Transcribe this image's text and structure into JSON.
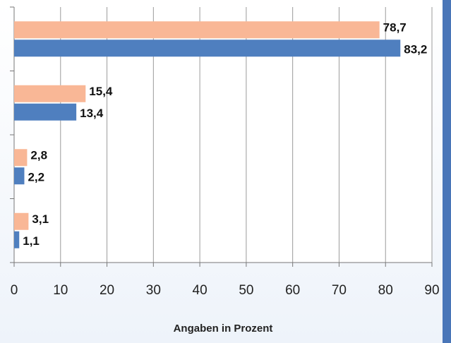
{
  "chart_data": {
    "type": "bar",
    "orientation": "horizontal",
    "categories": [
      null,
      null,
      null,
      null
    ],
    "series": [
      {
        "color": "#f9b796",
        "values": [
          78.7,
          15.4,
          2.8,
          3.1
        ],
        "value_labels": [
          "78,7",
          "15,4",
          "2,8",
          "3,1"
        ]
      },
      {
        "color": "#4f7fbf",
        "values": [
          83.2,
          13.4,
          2.2,
          1.1
        ],
        "value_labels": [
          "83,2",
          "13,4",
          "2,2",
          "1,1"
        ]
      }
    ],
    "xlim": [
      0,
      90
    ],
    "xticks": [
      0,
      10,
      20,
      30,
      40,
      50,
      60,
      70,
      80,
      90
    ],
    "xlabel": "Angaben in Prozent",
    "grid": true
  }
}
